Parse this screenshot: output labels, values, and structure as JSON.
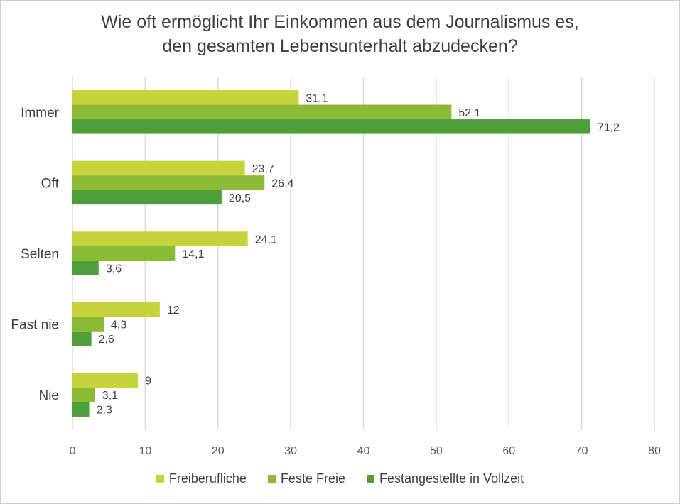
{
  "chart_data": {
    "type": "bar",
    "orientation": "horizontal",
    "title_lines": [
      "Wie oft ermöglicht Ihr Einkommen aus dem Journalismus es,",
      "den gesamten Lebensunterhalt abzudecken?"
    ],
    "categories": [
      "Immer",
      "Oft",
      "Selten",
      "Fast nie",
      "Nie"
    ],
    "series": [
      {
        "name": "Freiberufliche",
        "color": "#c5d43a",
        "values": [
          31.1,
          23.7,
          24.1,
          12,
          9
        ],
        "labels": [
          "31,1",
          "23,7",
          "24,1",
          "12",
          "9"
        ]
      },
      {
        "name": "Feste Freie",
        "color": "#8bbb35",
        "values": [
          52.1,
          26.4,
          14.1,
          4.3,
          3.1
        ],
        "labels": [
          "52,1",
          "26,4",
          "14,1",
          "4,3",
          "3,1"
        ]
      },
      {
        "name": "Festangestellte in Vollzeit",
        "color": "#4e9e3a",
        "values": [
          71.2,
          20.5,
          3.6,
          2.6,
          2.3
        ],
        "labels": [
          "71,2",
          "20,5",
          "3,6",
          "2,6",
          "2,3"
        ]
      }
    ],
    "xlim": [
      0,
      80
    ],
    "xticks": [
      "0",
      "10",
      "20",
      "30",
      "40",
      "50",
      "60",
      "70",
      "80"
    ],
    "grid": true,
    "legend_position": "bottom"
  }
}
